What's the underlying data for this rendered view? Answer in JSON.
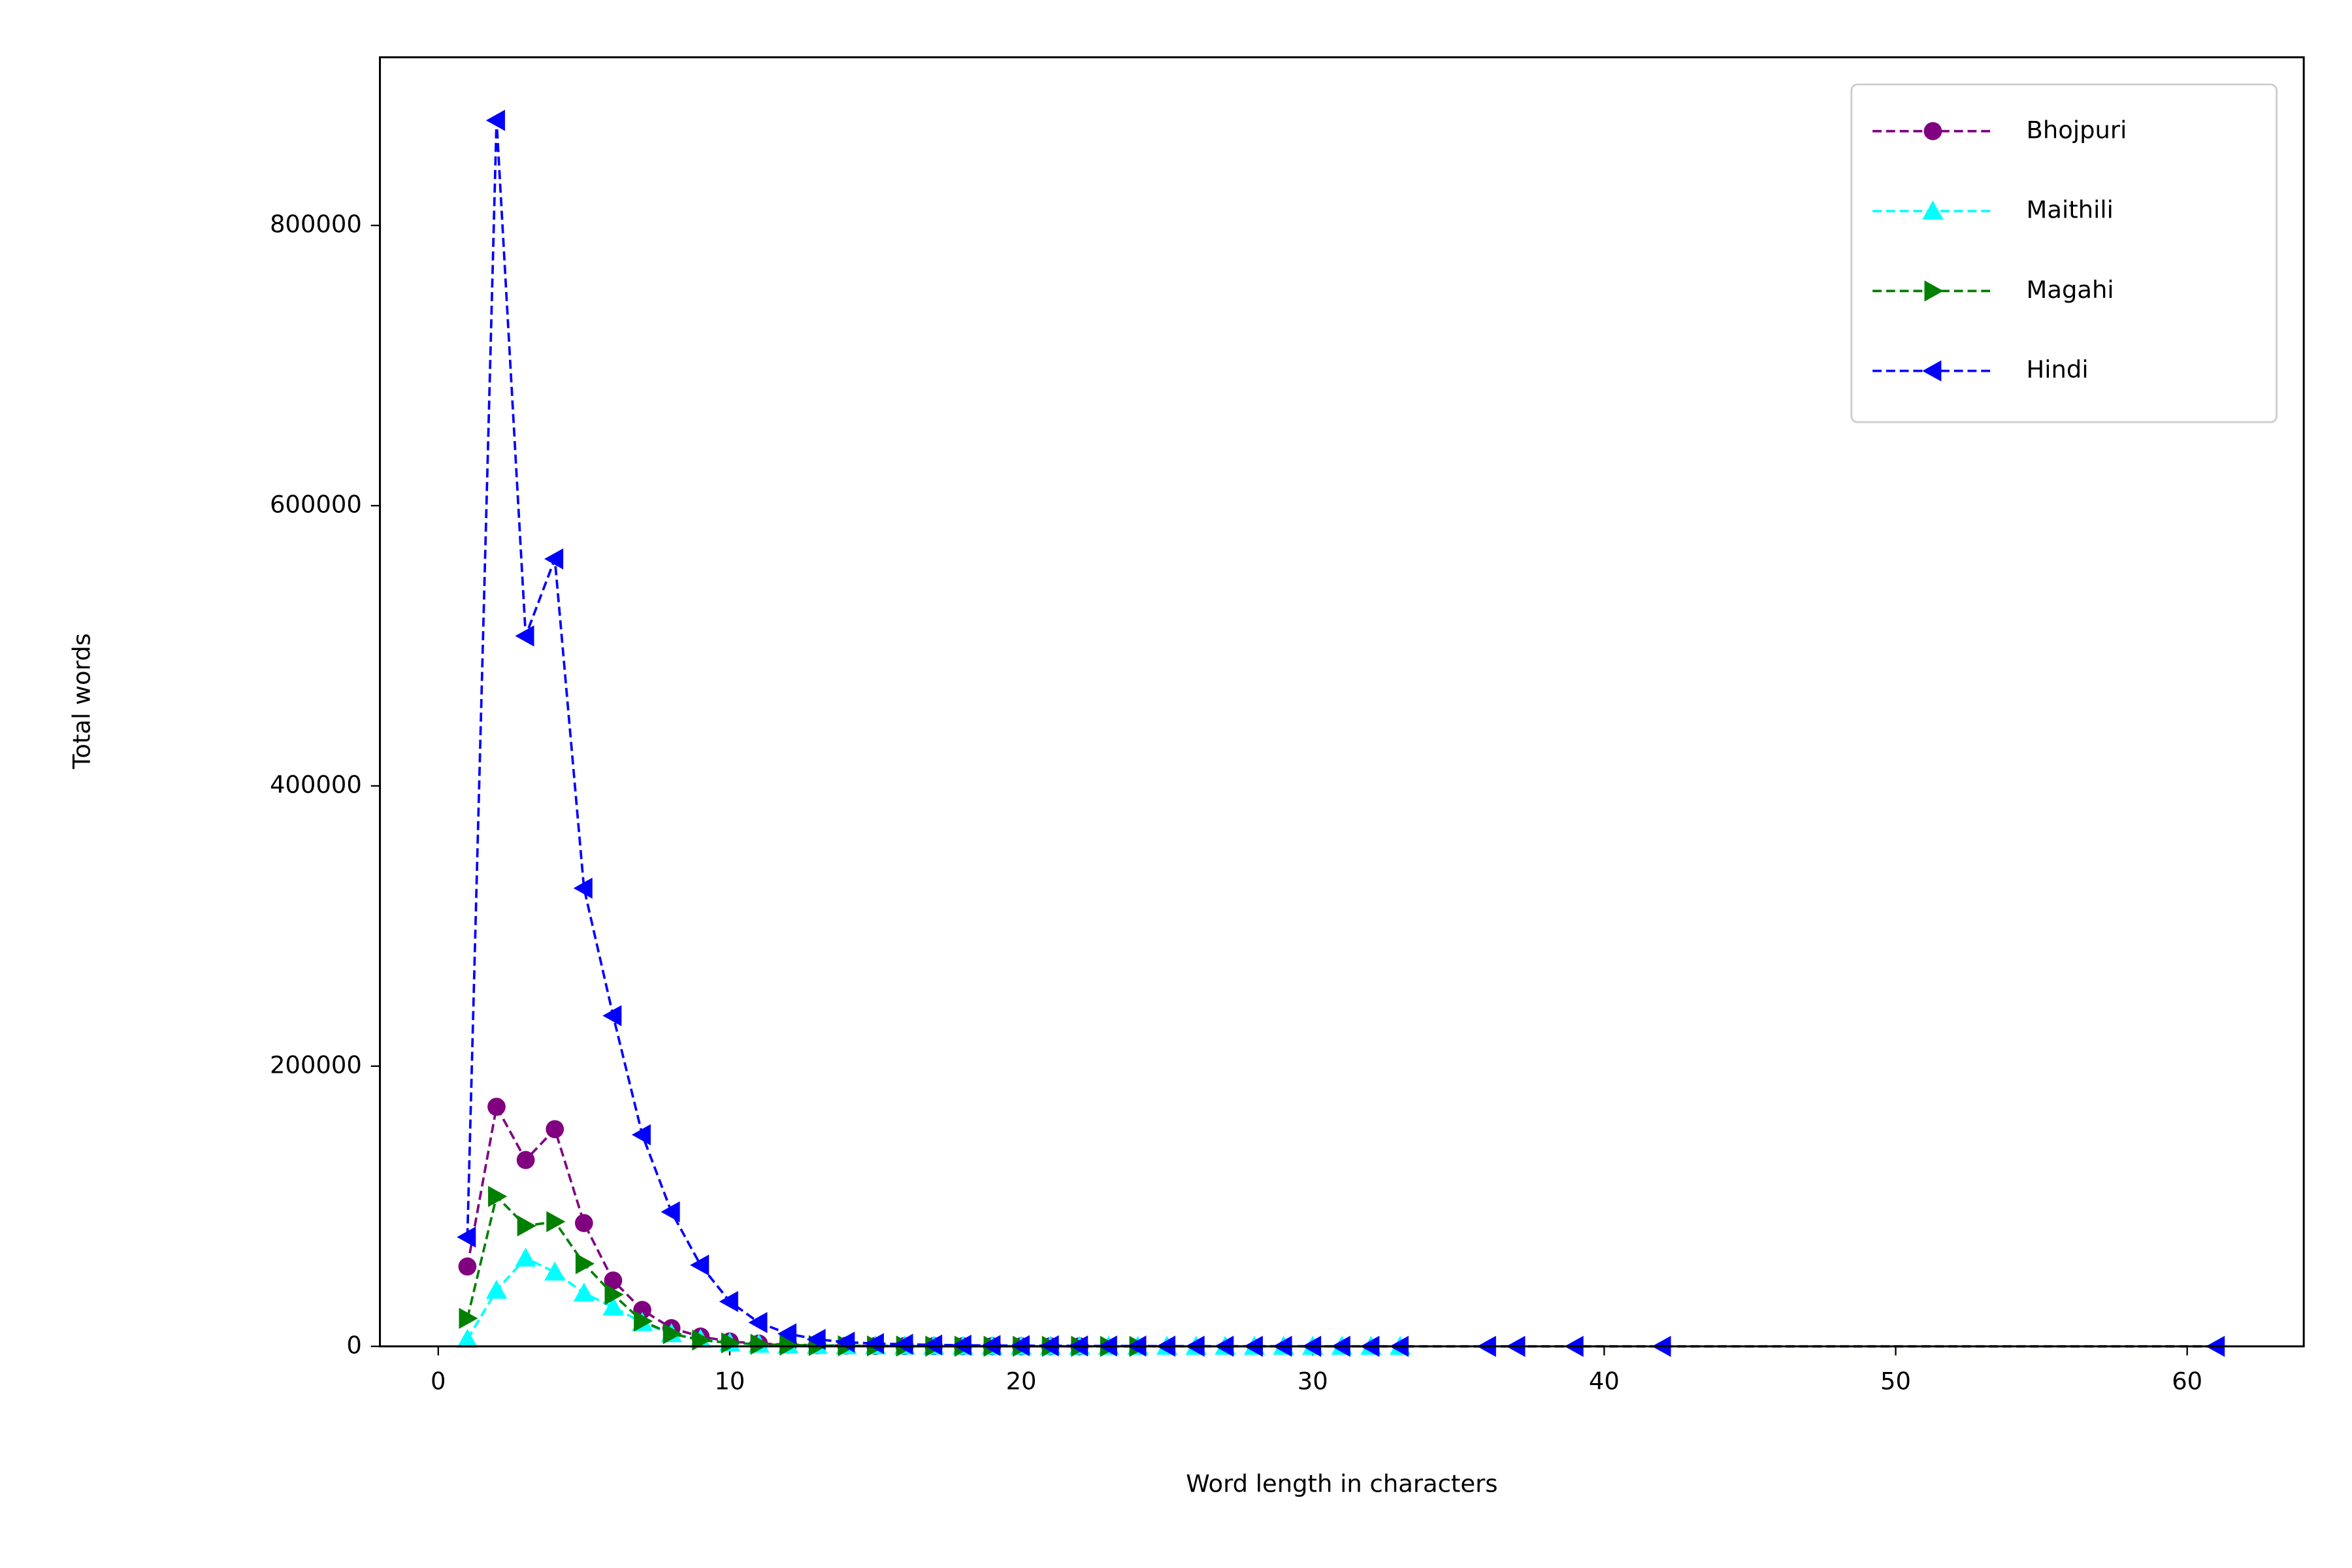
{
  "chart_data": {
    "type": "line",
    "xlabel": "Word length in characters",
    "ylabel": "Total words",
    "xlim": [
      -2,
      64
    ],
    "xticks": [
      0,
      10,
      20,
      30,
      40,
      50,
      60
    ],
    "ylim": [
      0,
      920000
    ],
    "yticks": [
      0,
      200000,
      400000,
      600000,
      800000
    ],
    "legend": "upper right",
    "linestyle": "dashed",
    "series": [
      {
        "name": "Bhojpuri",
        "color": "#800080",
        "marker": "circle",
        "x": [
          1,
          2,
          3,
          4,
          5,
          6,
          7,
          8,
          9,
          10,
          11,
          12,
          13,
          14,
          15,
          16,
          17,
          18,
          19,
          20,
          21,
          22
        ],
        "values": [
          57000,
          171000,
          133000,
          155000,
          88000,
          47000,
          26000,
          13000,
          7000,
          3500,
          2000,
          1200,
          800,
          500,
          300,
          200,
          150,
          100,
          80,
          50,
          30,
          20
        ]
      },
      {
        "name": "Maithili",
        "color": "#00ffff",
        "marker": "triangle-up",
        "x": [
          1,
          2,
          3,
          4,
          5,
          6,
          7,
          8,
          9,
          10,
          11,
          12,
          13,
          14,
          15,
          16,
          17,
          18,
          19,
          20,
          21,
          22,
          23,
          24,
          25,
          26,
          27,
          28,
          29,
          30,
          31,
          32,
          33
        ],
        "values": [
          5000,
          40000,
          63000,
          53000,
          38000,
          28000,
          17000,
          9000,
          5000,
          2500,
          1500,
          900,
          600,
          400,
          300,
          200,
          150,
          100,
          80,
          60,
          50,
          40,
          30,
          20,
          15,
          10,
          10,
          8,
          6,
          5,
          4,
          3,
          2
        ]
      },
      {
        "name": "Magahi",
        "color": "#008000",
        "marker": "triangle-right",
        "x": [
          1,
          2,
          3,
          4,
          5,
          6,
          7,
          8,
          9,
          10,
          11,
          12,
          13,
          14,
          15,
          16,
          17,
          18,
          19,
          20,
          21,
          22,
          23,
          24
        ],
        "values": [
          20000,
          107000,
          86000,
          89000,
          59000,
          37000,
          18000,
          9000,
          4500,
          2500,
          1500,
          900,
          600,
          400,
          300,
          200,
          150,
          100,
          80,
          60,
          40,
          30,
          20,
          10
        ]
      },
      {
        "name": "Hindi",
        "color": "#0000ff",
        "marker": "triangle-left",
        "x": [
          1,
          2,
          3,
          4,
          5,
          6,
          7,
          8,
          9,
          10,
          11,
          12,
          13,
          14,
          15,
          16,
          17,
          18,
          19,
          20,
          21,
          22,
          23,
          24,
          25,
          26,
          27,
          28,
          29,
          30,
          31,
          32,
          33,
          36,
          37,
          39,
          42,
          61
        ],
        "values": [
          78000,
          875000,
          507000,
          562000,
          327000,
          236000,
          151000,
          96000,
          58000,
          32000,
          17000,
          9000,
          5000,
          3000,
          2000,
          1500,
          1000,
          800,
          600,
          500,
          400,
          300,
          250,
          200,
          150,
          120,
          100,
          80,
          60,
          50,
          40,
          30,
          20,
          10,
          10,
          5,
          5,
          1
        ]
      }
    ]
  }
}
